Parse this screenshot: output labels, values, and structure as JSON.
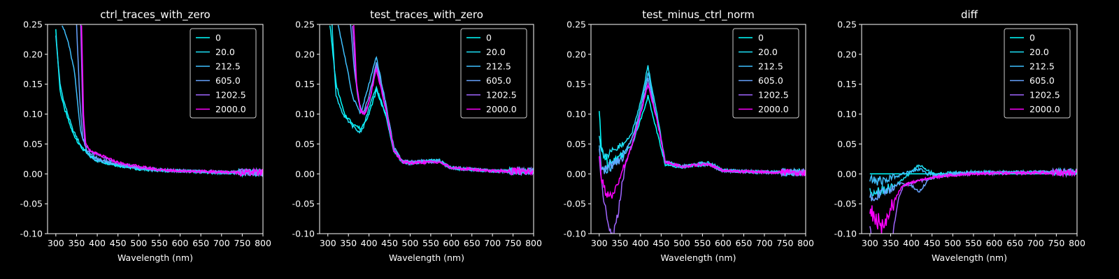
{
  "colors": {
    "background": "#000000",
    "axes": "#ffffff",
    "series": [
      "#00ffff",
      "#1de2f7",
      "#3fc0ff",
      "#66a3ff",
      "#a066ff",
      "#ff00ff"
    ]
  },
  "chart_data": [
    {
      "type": "line",
      "title": "ctrl_traces_with_zero",
      "xlabel": "Wavelength (nm)",
      "ylabel": "",
      "xlim": [
        280,
        800
      ],
      "ylim": [
        -0.1,
        0.25
      ],
      "xticks": [
        "300",
        "350",
        "400",
        "450",
        "500",
        "550",
        "600",
        "650",
        "700",
        "750",
        "800"
      ],
      "yticks": [
        "0.25",
        "0.20",
        "0.15",
        "0.10",
        "0.05",
        "0.00",
        "-0.05",
        "-0.10"
      ],
      "legend_position": "top-right",
      "legend": [
        "0",
        "20.0",
        "212.5",
        "605.0",
        "1202.5",
        "2000.0"
      ],
      "series": [
        {
          "name": "0",
          "x": [
            300,
            310,
            320,
            340,
            360,
            380,
            400,
            450,
            500,
            550,
            600,
            700,
            800
          ],
          "y": [
            0.24,
            0.14,
            0.11,
            0.07,
            0.045,
            0.03,
            0.022,
            0.014,
            0.008,
            0.006,
            0.005,
            0.002,
            0.002
          ]
        },
        {
          "name": "20.0",
          "x": [
            300,
            310,
            320,
            340,
            360,
            380,
            400,
            450,
            500,
            550,
            600,
            700,
            800
          ],
          "y": [
            0.23,
            0.15,
            0.12,
            0.075,
            0.048,
            0.032,
            0.024,
            0.015,
            0.009,
            0.006,
            0.005,
            0.002,
            0.002
          ]
        },
        {
          "name": "212.5",
          "x": [
            315,
            330,
            345,
            360,
            380,
            400,
            450,
            500,
            550,
            600,
            700,
            800
          ],
          "y": [
            0.25,
            0.22,
            0.17,
            0.07,
            0.03,
            0.022,
            0.015,
            0.01,
            0.006,
            0.005,
            0.002,
            0.002
          ]
        },
        {
          "name": "605.0",
          "x": [
            350,
            358,
            365,
            375,
            390,
            400,
            450,
            500,
            550,
            600,
            700,
            800
          ],
          "y": [
            0.25,
            0.12,
            0.06,
            0.04,
            0.032,
            0.025,
            0.016,
            0.01,
            0.007,
            0.005,
            0.003,
            0.002
          ]
        },
        {
          "name": "1202.5",
          "x": [
            360,
            365,
            370,
            380,
            400,
            450,
            500,
            550,
            600,
            700,
            800
          ],
          "y": [
            0.25,
            0.1,
            0.05,
            0.04,
            0.032,
            0.018,
            0.011,
            0.007,
            0.005,
            0.003,
            0.002
          ]
        },
        {
          "name": "2000.0",
          "x": [
            362,
            367,
            372,
            380,
            400,
            450,
            500,
            550,
            600,
            700,
            800
          ],
          "y": [
            0.25,
            0.1,
            0.05,
            0.04,
            0.033,
            0.019,
            0.012,
            0.007,
            0.005,
            0.003,
            0.002
          ]
        }
      ]
    },
    {
      "type": "line",
      "title": "test_traces_with_zero",
      "xlabel": "Wavelength (nm)",
      "ylabel": "",
      "xlim": [
        280,
        800
      ],
      "ylim": [
        -0.1,
        0.25
      ],
      "xticks": [
        "300",
        "350",
        "400",
        "450",
        "500",
        "550",
        "600",
        "650",
        "700",
        "750",
        "800"
      ],
      "yticks": [
        "0.25",
        "0.20",
        "0.15",
        "0.10",
        "0.05",
        "0.00",
        "-0.05",
        "-0.10"
      ],
      "legend_position": "top-right",
      "legend": [
        "0",
        "20.0",
        "212.5",
        "605.0",
        "1202.5",
        "2000.0"
      ],
      "series": [
        {
          "name": "0",
          "x": [
            305,
            320,
            340,
            360,
            380,
            400,
            418,
            440,
            460,
            480,
            500,
            550,
            570,
            600,
            700,
            800
          ],
          "y": [
            0.25,
            0.15,
            0.1,
            0.085,
            0.075,
            0.1,
            0.14,
            0.1,
            0.04,
            0.02,
            0.018,
            0.022,
            0.022,
            0.01,
            0.005,
            0.004
          ]
        },
        {
          "name": "20.0",
          "x": [
            310,
            320,
            340,
            360,
            375,
            385,
            400,
            418,
            440,
            460,
            480,
            500,
            550,
            570,
            600,
            700,
            800
          ],
          "y": [
            0.25,
            0.13,
            0.095,
            0.08,
            0.07,
            0.075,
            0.11,
            0.145,
            0.1,
            0.04,
            0.02,
            0.018,
            0.022,
            0.022,
            0.01,
            0.005,
            0.004
          ]
        },
        {
          "name": "212.5",
          "x": [
            325,
            340,
            360,
            380,
            400,
            418,
            440,
            460,
            480,
            500,
            550,
            570,
            600,
            700,
            800
          ],
          "y": [
            0.25,
            0.2,
            0.13,
            0.1,
            0.15,
            0.195,
            0.12,
            0.045,
            0.022,
            0.02,
            0.022,
            0.022,
            0.01,
            0.005,
            0.004
          ]
        },
        {
          "name": "605.0",
          "x": [
            355,
            365,
            375,
            385,
            400,
            418,
            440,
            460,
            480,
            500,
            550,
            570,
            600,
            700,
            800
          ],
          "y": [
            0.25,
            0.17,
            0.12,
            0.1,
            0.13,
            0.185,
            0.12,
            0.045,
            0.022,
            0.02,
            0.021,
            0.02,
            0.01,
            0.005,
            0.004
          ]
        },
        {
          "name": "1202.5",
          "x": [
            360,
            368,
            378,
            388,
            400,
            418,
            440,
            460,
            480,
            500,
            550,
            570,
            600,
            700,
            800
          ],
          "y": [
            0.25,
            0.16,
            0.11,
            0.1,
            0.12,
            0.18,
            0.11,
            0.04,
            0.02,
            0.018,
            0.02,
            0.02,
            0.01,
            0.005,
            0.004
          ]
        },
        {
          "name": "2000.0",
          "x": [
            363,
            370,
            380,
            390,
            400,
            418,
            440,
            460,
            480,
            500,
            550,
            570,
            600,
            700,
            800
          ],
          "y": [
            0.25,
            0.15,
            0.105,
            0.1,
            0.12,
            0.175,
            0.11,
            0.04,
            0.02,
            0.018,
            0.02,
            0.02,
            0.01,
            0.005,
            0.004
          ]
        }
      ]
    },
    {
      "type": "line",
      "title": "test_minus_ctrl_norm",
      "xlabel": "Wavelength (nm)",
      "ylabel": "",
      "xlim": [
        280,
        800
      ],
      "ylim": [
        -0.1,
        0.25
      ],
      "xticks": [
        "300",
        "350",
        "400",
        "450",
        "500",
        "550",
        "600",
        "650",
        "700",
        "750",
        "800"
      ],
      "yticks": [
        "0.25",
        "0.20",
        "0.15",
        "0.10",
        "0.05",
        "0.00",
        "-0.05",
        "-0.10"
      ],
      "legend_position": "top-right",
      "legend": [
        "0",
        "20.0",
        "212.5",
        "605.0",
        "1202.5",
        "2000.0"
      ],
      "series": [
        {
          "name": "0",
          "x": [
            300,
            305,
            320,
            340,
            360,
            380,
            400,
            418,
            440,
            460,
            500,
            550,
            570,
            600,
            700,
            800
          ],
          "y": [
            0.105,
            0.04,
            0.02,
            0.025,
            0.035,
            0.05,
            0.09,
            0.13,
            0.07,
            0.015,
            0.012,
            0.015,
            0.015,
            0.005,
            0.003,
            0.002
          ]
        },
        {
          "name": "20.0",
          "x": [
            300,
            305,
            320,
            340,
            360,
            380,
            400,
            418,
            440,
            460,
            500,
            550,
            570,
            600,
            700,
            800
          ],
          "y": [
            0.07,
            0.04,
            0.03,
            0.04,
            0.05,
            0.07,
            0.12,
            0.18,
            0.1,
            0.02,
            0.012,
            0.018,
            0.018,
            0.006,
            0.003,
            0.002
          ]
        },
        {
          "name": "212.5",
          "x": [
            300,
            305,
            320,
            340,
            360,
            380,
            400,
            418,
            440,
            460,
            500,
            550,
            570,
            600,
            700,
            800
          ],
          "y": [
            0.05,
            0.01,
            0.005,
            0.02,
            0.035,
            0.06,
            0.11,
            0.17,
            0.09,
            0.02,
            0.012,
            0.018,
            0.015,
            0.005,
            0.003,
            0.002
          ]
        },
        {
          "name": "605.0",
          "x": [
            300,
            305,
            320,
            340,
            360,
            380,
            400,
            418,
            440,
            460,
            500,
            550,
            570,
            600,
            700,
            800
          ],
          "y": [
            0.04,
            0.0,
            0.01,
            0.02,
            0.03,
            0.06,
            0.1,
            0.16,
            0.09,
            0.02,
            0.012,
            0.016,
            0.015,
            0.005,
            0.003,
            0.002
          ]
        },
        {
          "name": "1202.5",
          "x": [
            300,
            305,
            315,
            325,
            335,
            345,
            355,
            365,
            380,
            400,
            418,
            440,
            460,
            500,
            550,
            570,
            600,
            700,
            800
          ],
          "y": [
            0.03,
            -0.01,
            -0.06,
            -0.095,
            -0.1,
            -0.07,
            -0.02,
            0.02,
            0.05,
            0.1,
            0.15,
            0.09,
            0.02,
            0.012,
            0.016,
            0.015,
            0.005,
            0.003,
            0.002
          ]
        },
        {
          "name": "2000.0",
          "x": [
            300,
            305,
            315,
            325,
            335,
            345,
            355,
            365,
            380,
            400,
            418,
            440,
            460,
            500,
            550,
            570,
            600,
            700,
            800
          ],
          "y": [
            0.03,
            -0.005,
            -0.03,
            -0.04,
            -0.035,
            -0.02,
            0.0,
            0.02,
            0.05,
            0.1,
            0.15,
            0.09,
            0.02,
            0.012,
            0.016,
            0.015,
            0.005,
            0.003,
            0.002
          ]
        }
      ]
    },
    {
      "type": "line",
      "title": "diff",
      "xlabel": "Wavelength (nm)",
      "ylabel": "",
      "xlim": [
        280,
        800
      ],
      "ylim": [
        -0.1,
        0.25
      ],
      "xticks": [
        "300",
        "350",
        "400",
        "450",
        "500",
        "550",
        "600",
        "650",
        "700",
        "750",
        "800"
      ],
      "yticks": [
        "0.25",
        "0.20",
        "0.15",
        "0.10",
        "0.05",
        "0.00",
        "-0.05",
        "-0.10"
      ],
      "legend_position": "top-right",
      "legend": [
        "0",
        "20.0",
        "212.5",
        "605.0",
        "1202.5",
        "2000.0"
      ],
      "series": [
        {
          "name": "0",
          "x": [
            300,
            800
          ],
          "y": [
            0.0,
            0.0
          ]
        },
        {
          "name": "20.0",
          "x": [
            300,
            320,
            340,
            360,
            380,
            400,
            420,
            440,
            460,
            500,
            550,
            600,
            700,
            800
          ],
          "y": [
            -0.03,
            -0.028,
            -0.025,
            -0.02,
            -0.01,
            0.005,
            0.015,
            0.005,
            0.0,
            0.002,
            0.003,
            0.003,
            0.003,
            0.003
          ]
        },
        {
          "name": "212.5",
          "x": [
            300,
            320,
            340,
            360,
            380,
            400,
            420,
            440,
            460,
            500,
            550,
            600,
            700,
            800
          ],
          "y": [
            -0.01,
            -0.012,
            -0.01,
            -0.005,
            0.0,
            0.005,
            0.008,
            0.0,
            -0.002,
            0.0,
            0.002,
            0.002,
            0.003,
            0.003
          ]
        },
        {
          "name": "605.0",
          "x": [
            300,
            320,
            340,
            360,
            380,
            400,
            420,
            440,
            460,
            500,
            550,
            600,
            700,
            800
          ],
          "y": [
            -0.04,
            -0.035,
            -0.03,
            -0.02,
            -0.015,
            -0.02,
            -0.03,
            -0.01,
            -0.005,
            0.0,
            0.002,
            0.002,
            0.003,
            0.003
          ]
        },
        {
          "name": "1202.5",
          "x": [
            300,
            305,
            315,
            330,
            345,
            355,
            370,
            380,
            400,
            420,
            440,
            460,
            500,
            550,
            600,
            700,
            800
          ],
          "y": [
            -0.09,
            -0.1,
            -0.12,
            -0.15,
            -0.13,
            -0.1,
            -0.04,
            -0.02,
            -0.015,
            -0.012,
            -0.008,
            -0.005,
            -0.002,
            0.0,
            0.001,
            0.002,
            0.002
          ]
        },
        {
          "name": "2000.0",
          "x": [
            300,
            305,
            315,
            330,
            345,
            355,
            370,
            380,
            400,
            420,
            440,
            460,
            500,
            550,
            600,
            700,
            800
          ],
          "y": [
            -0.06,
            -0.065,
            -0.075,
            -0.09,
            -0.08,
            -0.05,
            -0.03,
            -0.02,
            -0.015,
            -0.01,
            -0.008,
            -0.005,
            -0.002,
            0.0,
            0.001,
            0.002,
            0.002
          ]
        }
      ]
    }
  ]
}
